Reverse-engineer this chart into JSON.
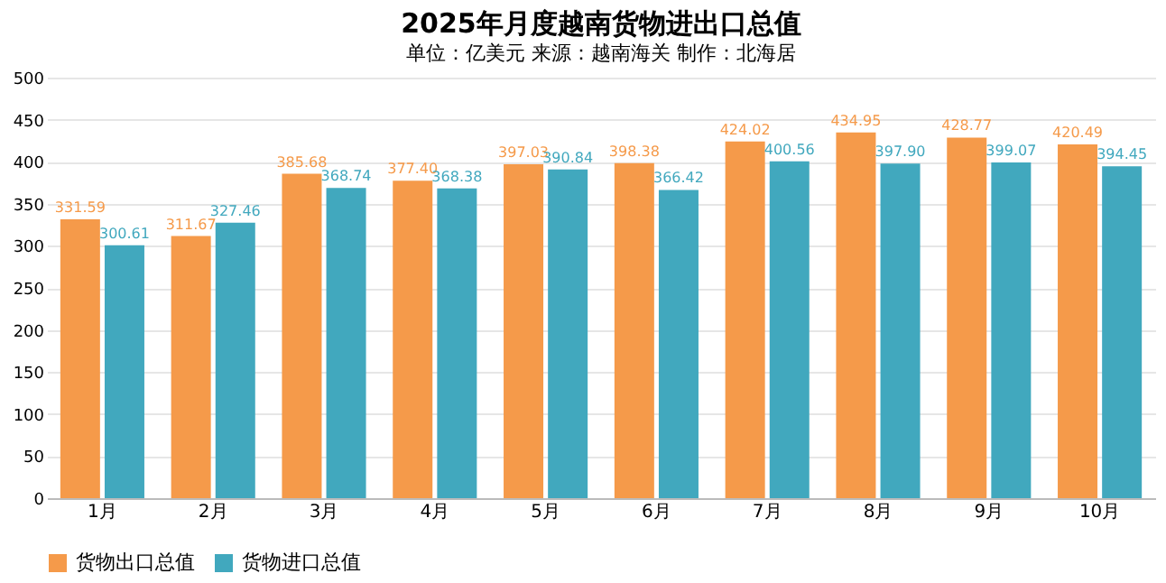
{
  "chart_data": {
    "type": "bar",
    "title": "2025年月度越南货物进出口总值",
    "subtitle": "单位：亿美元 来源：越南海关 制作：北海居",
    "categories": [
      "1月",
      "2月",
      "3月",
      "4月",
      "5月",
      "6月",
      "7月",
      "8月",
      "9月",
      "10月"
    ],
    "series": [
      {
        "name": "货物出口总值",
        "color": "#f59a4a",
        "values": [
          331.59,
          311.67,
          385.68,
          377.4,
          397.03,
          398.38,
          424.02,
          434.95,
          428.77,
          420.49
        ],
        "value_labels": [
          "331.59",
          "311.67",
          "385.68",
          "377.40",
          "397.03",
          "398.38",
          "424.02",
          "434.95",
          "428.77",
          "420.49"
        ]
      },
      {
        "name": "货物进口总值",
        "color": "#41a8be",
        "values": [
          300.61,
          327.46,
          368.74,
          368.38,
          390.84,
          366.42,
          400.56,
          397.9,
          399.07,
          394.45
        ],
        "value_labels": [
          "300.61",
          "327.46",
          "368.74",
          "368.38",
          "390.84",
          "366.42",
          "400.56",
          "397.90",
          "399.07",
          "394.45"
        ]
      }
    ],
    "ylim": [
      0,
      500
    ],
    "yticks": [
      0,
      50,
      100,
      150,
      200,
      250,
      300,
      350,
      400,
      450,
      500
    ],
    "grid": "y",
    "legend": "bottom"
  }
}
